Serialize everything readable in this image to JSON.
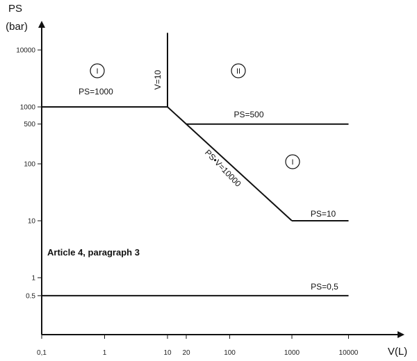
{
  "chart_data": {
    "type": "line",
    "title": "",
    "xlabel": "V(L)",
    "ylabel_line1": "PS",
    "ylabel_line2": "(bar)",
    "xscale": "log",
    "yscale": "log",
    "xlim": [
      0.1,
      50000
    ],
    "ylim": [
      0.1,
      25000
    ],
    "grid": false,
    "x_ticks": [
      {
        "value": 0.1,
        "label": "0,1"
      },
      {
        "value": 1,
        "label": "1"
      },
      {
        "value": 10,
        "label": "10"
      },
      {
        "value": 20,
        "label": "20"
      },
      {
        "value": 100,
        "label": "100"
      },
      {
        "value": 1000,
        "label": "1000"
      },
      {
        "value": 10000,
        "label": "10000"
      }
    ],
    "y_ticks": [
      {
        "value": 0.5,
        "label": "0.5"
      },
      {
        "value": 1,
        "label": "1"
      },
      {
        "value": 10,
        "label": "10"
      },
      {
        "value": 100,
        "label": "100"
      },
      {
        "value": 500,
        "label": "500"
      },
      {
        "value": 1000,
        "label": "1000"
      },
      {
        "value": 10000,
        "label": "10000"
      }
    ],
    "series": [
      {
        "label": "PS=1000",
        "x": [
          0.1,
          10
        ],
        "y": [
          1000,
          1000
        ]
      },
      {
        "label": "V=10",
        "x": [
          10,
          10
        ],
        "y": [
          1000,
          20000
        ]
      },
      {
        "label": "PS•V=10000",
        "x": [
          10,
          1000
        ],
        "y": [
          1000,
          10
        ]
      },
      {
        "label": "PS=500",
        "x": [
          20,
          10000
        ],
        "y": [
          500,
          500
        ]
      },
      {
        "label": "PS=10",
        "x": [
          1000,
          10000
        ],
        "y": [
          10,
          10
        ]
      },
      {
        "label": "PS=0,5",
        "x": [
          0.1,
          10000
        ],
        "y": [
          0.5,
          0.5
        ]
      }
    ],
    "regions": [
      {
        "label": "I",
        "x": 1,
        "y": 4000
      },
      {
        "label": "II",
        "x": 100,
        "y": 4000
      },
      {
        "label": "I",
        "x": 1000,
        "y": 100
      }
    ],
    "annotations": [
      {
        "text": "Article 4, paragraph 3",
        "x": 0.15,
        "y": 2.2
      }
    ]
  }
}
